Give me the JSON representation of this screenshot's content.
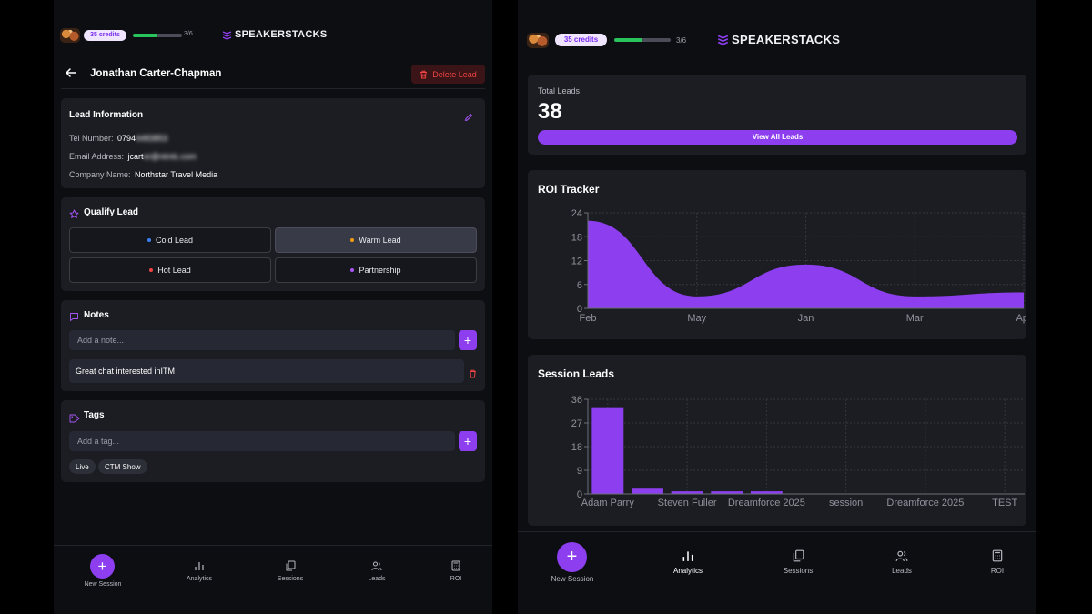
{
  "brand": {
    "name": "SPEAKERSTACKS"
  },
  "header": {
    "credits": "35 credits",
    "progress_text": "3/6",
    "progress_fraction": 0.5
  },
  "colors": {
    "accent": "#8d3ff0",
    "progress": "#27c35c",
    "cold": "#3b82f6",
    "warm": "#f59e0b",
    "hot": "#ef4444",
    "partnership": "#a855f7",
    "delete": "#ef4444"
  },
  "lead": {
    "name": "Jonathan Carter-Chapman",
    "delete_label": "Delete Lead",
    "info": {
      "title": "Lead Information",
      "tel_label": "Tel Number:",
      "tel_value": "0794",
      "tel_hidden": "4483853",
      "email_label": "Email Address:",
      "email_value": "jcart",
      "email_hidden": "er@ntmlc.com",
      "company_label": "Company Name:",
      "company_value": "Northstar Travel Media"
    },
    "qualify": {
      "title": "Qualify Lead",
      "options": [
        "Cold Lead",
        "Warm Lead",
        "Hot Lead",
        "Partnership"
      ],
      "selected": "Warm Lead"
    },
    "notes": {
      "title": "Notes",
      "placeholder": "Add a note...",
      "items": [
        "Great chat interested inITM"
      ]
    },
    "tags": {
      "title": "Tags",
      "placeholder": "Add a tag...",
      "items": [
        "Live",
        "CTM Show"
      ]
    }
  },
  "nav": {
    "new_session": "New Session",
    "analytics": "Analytics",
    "sessions": "Sessions",
    "leads": "Leads",
    "roi": "ROI"
  },
  "analytics": {
    "total_leads_label": "Total Leads",
    "total_leads_value": "38",
    "view_all_label": "View All Leads",
    "roi_title": "ROI Tracker",
    "session_title": "Session Leads"
  },
  "chart_data": [
    {
      "type": "area",
      "title": "ROI Tracker",
      "x": [
        "Feb",
        "May",
        "Jan",
        "Mar",
        "Apr"
      ],
      "values": [
        22,
        3,
        11,
        3,
        4
      ],
      "yticks": [
        0,
        6,
        12,
        18,
        24
      ],
      "ylim": [
        0,
        24
      ],
      "color": "#8d3ff0",
      "grid": true
    },
    {
      "type": "bar",
      "title": "Session Leads",
      "categories": [
        "Adam Parry",
        "",
        "Steven Fuller",
        "",
        "Dreamforce 2025",
        "",
        "session",
        "",
        "Dreamforce 2025",
        "",
        "TEST"
      ],
      "values": [
        33,
        2,
        1,
        1,
        1,
        0,
        0,
        0,
        0,
        0,
        0
      ],
      "yticks": [
        0,
        9,
        18,
        27,
        36
      ],
      "ylim": [
        0,
        36
      ],
      "color": "#8d3ff0",
      "grid": true
    }
  ]
}
